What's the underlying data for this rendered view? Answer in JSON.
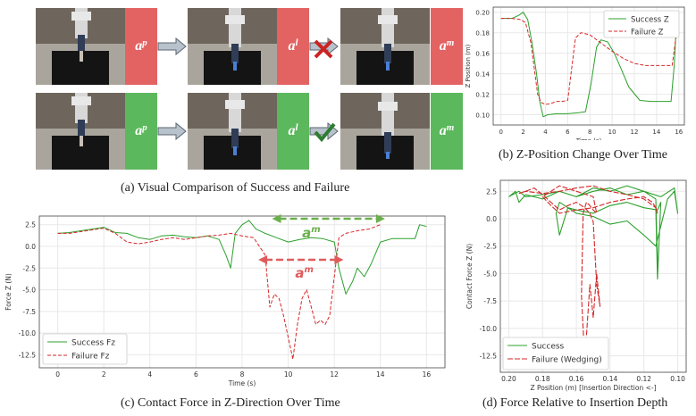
{
  "panel_a": {
    "caption": "(a) Visual Comparison of Success and Failure",
    "rows": [
      {
        "status": "failure",
        "color": "#e05c5c",
        "tags": [
          {
            "base": "a",
            "sup": "p"
          },
          {
            "base": "a",
            "sup": "l"
          },
          {
            "base": "a",
            "sup": "m"
          }
        ],
        "mark": "cross"
      },
      {
        "status": "success",
        "color": "#5cb85c",
        "tags": [
          {
            "base": "a",
            "sup": "p"
          },
          {
            "base": "a",
            "sup": "l"
          },
          {
            "base": "a",
            "sup": "m"
          }
        ],
        "mark": "check"
      }
    ]
  },
  "panel_b": {
    "caption": "(b) Z-Position Change Over Time",
    "chart_data": {
      "type": "line",
      "xlabel": "Time (s)",
      "ylabel": "Z Position (m)",
      "xlim": [
        -0.7,
        16.5
      ],
      "ylim": [
        0.09,
        0.205
      ],
      "xticks": [
        0,
        2,
        4,
        6,
        8,
        10,
        12,
        14,
        16
      ],
      "yticks": [
        0.1,
        0.12,
        0.14,
        0.16,
        0.18,
        0.2
      ],
      "legend": "top-right",
      "series": [
        {
          "name": "Success Z",
          "color": "#2ca02c",
          "style": "solid",
          "x": [
            0,
            1,
            1.6,
            2,
            2.4,
            2.8,
            3.2,
            3.5,
            3.8,
            4.2,
            5,
            6,
            7,
            7.6,
            8.1,
            8.6,
            9,
            9.6,
            10.2,
            10.8,
            11.5,
            12.5,
            13.5,
            14.5,
            15.3,
            15.6,
            15.8
          ],
          "y": [
            0.194,
            0.194,
            0.197,
            0.2,
            0.193,
            0.17,
            0.14,
            0.112,
            0.098,
            0.1,
            0.101,
            0.101,
            0.102,
            0.103,
            0.13,
            0.166,
            0.173,
            0.171,
            0.16,
            0.145,
            0.127,
            0.114,
            0.113,
            0.113,
            0.113,
            0.15,
            0.195
          ]
        },
        {
          "name": "Failure Z",
          "color": "#d62728",
          "style": "dashed",
          "x": [
            0,
            1,
            1.7,
            2.2,
            2.7,
            3.0,
            3.3,
            3.6,
            4.0,
            4.5,
            5.0,
            5.5,
            6.0,
            6.3,
            6.7,
            7.2,
            8,
            9,
            10,
            11,
            12,
            13,
            14,
            15,
            15.4,
            15.8
          ],
          "y": [
            0.194,
            0.194,
            0.193,
            0.19,
            0.17,
            0.145,
            0.12,
            0.112,
            0.11,
            0.111,
            0.113,
            0.113,
            0.114,
            0.14,
            0.175,
            0.18,
            0.178,
            0.17,
            0.162,
            0.155,
            0.15,
            0.148,
            0.148,
            0.148,
            0.148,
            0.18
          ]
        }
      ]
    }
  },
  "panel_c": {
    "caption": "(c) Contact Force in Z-Direction Over Time",
    "annotation_label": {
      "base": "a",
      "sup": "m"
    },
    "chart_data": {
      "type": "line",
      "xlabel": "Time (s)",
      "ylabel": "Force Z (N)",
      "xlim": [
        -0.8,
        16.8
      ],
      "ylim": [
        -14,
        3.5
      ],
      "xticks": [
        0,
        2,
        4,
        6,
        8,
        10,
        12,
        14,
        16
      ],
      "yticks": [
        2.5,
        0.0,
        -2.5,
        -5.0,
        -7.5,
        -10.0,
        -12.5
      ],
      "legend": "bottom-left",
      "series": [
        {
          "name": "Success Fz",
          "color": "#2ca02c",
          "style": "solid",
          "x": [
            0,
            0.5,
            1,
            1.5,
            2,
            2.5,
            3,
            3.5,
            4,
            4.5,
            5,
            5.5,
            6,
            6.5,
            7,
            7.3,
            7.5,
            7.7,
            8,
            8.3,
            8.6,
            9,
            9.5,
            10,
            10.5,
            11,
            11.5,
            12,
            12.2,
            12.5,
            12.8,
            13,
            13.3,
            13.6,
            14,
            14.5,
            15,
            15.5,
            15.7,
            16
          ],
          "y": [
            1.5,
            1.6,
            1.8,
            2.0,
            2.2,
            1.6,
            1.5,
            1.0,
            0.8,
            1.2,
            1.3,
            1.1,
            1.0,
            1.2,
            0.8,
            -1.0,
            -2.5,
            1.5,
            2.5,
            3.0,
            2.0,
            1.5,
            1.0,
            0.5,
            0.8,
            1.0,
            0.9,
            0.5,
            -2.5,
            -5.5,
            -4.0,
            -2.5,
            -3.5,
            -2.0,
            0.5,
            0.9,
            0.9,
            0.9,
            2.5,
            2.3
          ]
        },
        {
          "name": "Failure Fz",
          "color": "#d62728",
          "style": "dashed",
          "x": [
            0,
            0.5,
            1,
            1.5,
            2,
            2.5,
            3,
            3.5,
            4,
            4.5,
            5,
            5.5,
            6,
            6.5,
            7,
            7.5,
            8,
            8.5,
            9,
            9.2,
            9.4,
            9.6,
            9.8,
            10,
            10.2,
            10.4,
            10.6,
            10.8,
            11,
            11.2,
            11.4,
            11.6,
            11.8,
            12,
            12.2,
            12.5,
            13,
            13.5,
            14
          ],
          "y": [
            1.5,
            1.5,
            1.7,
            1.9,
            2.1,
            1.5,
            0.5,
            0.3,
            0.5,
            0.8,
            1.0,
            0.8,
            1.0,
            1.2,
            1.3,
            1.5,
            1.2,
            1.0,
            -1.0,
            -7.0,
            -5.5,
            -6.0,
            -8.0,
            -10.5,
            -13.0,
            -9.0,
            -6.0,
            -5.0,
            -7.0,
            -9.0,
            -8.5,
            -9.0,
            -8.0,
            -3.5,
            1.0,
            1.5,
            1.8,
            2.0,
            2.5
          ]
        }
      ]
    }
  },
  "panel_d": {
    "caption": "(d) Force Relative to Insertion Depth",
    "chart_data": {
      "type": "line",
      "xlabel": "Z Position (m) [Insertion Direction <-]",
      "ylabel": "Contact Force Z (N)",
      "xlim": [
        0.205,
        0.095
      ],
      "ylim": [
        -14,
        3.5
      ],
      "xticks": [
        0.2,
        0.18,
        0.16,
        0.14,
        0.12,
        0.1
      ],
      "xtick_labels": [
        "0.20",
        "0.18",
        "0.16",
        "0.14",
        "0.12",
        "0.10"
      ],
      "yticks": [
        2.5,
        0.0,
        -2.5,
        -5.0,
        -7.5,
        -10.0,
        -12.5
      ],
      "legend": "bottom-left",
      "series": [
        {
          "name": "Success",
          "color": "#2ca02c",
          "style": "solid",
          "x": [
            0.2,
            0.196,
            0.194,
            0.19,
            0.18,
            0.17,
            0.16,
            0.15,
            0.14,
            0.13,
            0.12,
            0.113,
            0.112,
            0.113,
            0.112,
            0.11,
            0.112,
            0.12,
            0.13,
            0.14,
            0.15,
            0.16,
            0.165,
            0.17,
            0.172,
            0.17,
            0.165,
            0.16,
            0.15,
            0.14,
            0.13,
            0.12,
            0.113,
            0.106,
            0.102,
            0.101,
            0.1,
            0.102,
            0.11,
            0.12,
            0.13,
            0.14,
            0.15,
            0.16,
            0.17,
            0.18,
            0.19,
            0.194,
            0.2
          ],
          "y": [
            2.0,
            2.5,
            1.5,
            2.2,
            1.8,
            2.5,
            2.0,
            2.8,
            2.5,
            3.0,
            2.5,
            1.8,
            -4.0,
            1.0,
            -5.5,
            1.5,
            0.8,
            1.0,
            1.5,
            1.2,
            0.5,
            0.8,
            1.0,
            -1.5,
            0.5,
            1.5,
            1.0,
            0.5,
            0.2,
            -0.5,
            -0.2,
            -1.5,
            -2.5,
            1.8,
            2.5,
            1.5,
            0.5,
            2.8,
            2.0,
            2.5,
            2.2,
            2.8,
            2.5,
            2.0,
            2.5,
            2.2,
            2.0,
            2.5,
            2.0
          ]
        },
        {
          "name": "Failure (Wedging)",
          "color": "#d62728",
          "style": "dashed",
          "x": [
            0.194,
            0.19,
            0.185,
            0.18,
            0.175,
            0.17,
            0.165,
            0.16,
            0.155,
            0.152,
            0.15,
            0.148,
            0.146,
            0.148,
            0.15,
            0.152,
            0.155,
            0.157,
            0.156,
            0.155,
            0.154,
            0.152,
            0.15,
            0.148,
            0.15,
            0.16,
            0.17,
            0.175,
            0.18,
            0.175,
            0.17,
            0.16,
            0.15,
            0.14,
            0.13,
            0.12,
            0.115,
            0.113,
            0.112,
            0.113,
            0.12,
            0.13,
            0.14,
            0.15,
            0.16,
            0.17,
            0.18,
            0.19,
            0.194
          ],
          "y": [
            2.3,
            2.5,
            2.8,
            2.2,
            1.5,
            0.8,
            1.2,
            1.5,
            1.0,
            0.5,
            -0.3,
            -6.0,
            -8.0,
            -5.0,
            -9.0,
            -6.0,
            -13.0,
            -7.0,
            0.5,
            1.0,
            1.5,
            1.2,
            0.8,
            0.5,
            2.0,
            2.5,
            3.0,
            2.5,
            2.0,
            1.2,
            0.5,
            0.8,
            1.0,
            1.5,
            1.8,
            2.0,
            1.5,
            1.0,
            0.5,
            1.0,
            1.8,
            2.2,
            2.5,
            3.0,
            2.8,
            2.5,
            2.3,
            2.5,
            2.3
          ]
        }
      ]
    }
  }
}
